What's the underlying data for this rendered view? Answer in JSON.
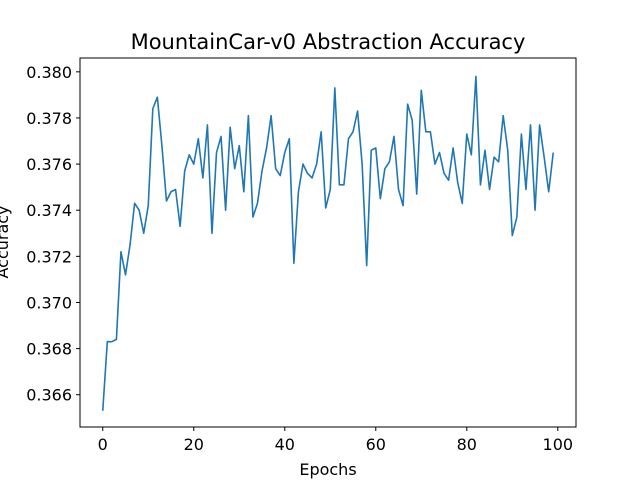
{
  "chart_data": {
    "type": "line",
    "title": "MountainCar-v0 Abstraction Accuracy",
    "xlabel": "Epochs",
    "ylabel": "Accuracy",
    "xlim": [
      -5,
      104
    ],
    "ylim": [
      0.3646,
      0.3806
    ],
    "xticks": [
      0,
      20,
      40,
      60,
      80,
      100
    ],
    "yticks": [
      0.366,
      0.368,
      0.37,
      0.372,
      0.374,
      0.376,
      0.378,
      0.38
    ],
    "ytick_labels": [
      "0.366",
      "0.368",
      "0.370",
      "0.372",
      "0.374",
      "0.376",
      "0.378",
      "0.380"
    ],
    "grid": false,
    "line_color": "#1f77b4",
    "series": [
      {
        "x": [
          0,
          1,
          2,
          3,
          4,
          5,
          6,
          7,
          8,
          9,
          10,
          11,
          12,
          13,
          14,
          15,
          16,
          17,
          18,
          19,
          20,
          21,
          22,
          23,
          24,
          25,
          26,
          27,
          28,
          29,
          30,
          31,
          32,
          33,
          34,
          35,
          36,
          37,
          38,
          39,
          40,
          41,
          42,
          43,
          44,
          45,
          46,
          47,
          48,
          49,
          50,
          51,
          52,
          53,
          54,
          55,
          56,
          57,
          58,
          59,
          60,
          61,
          62,
          63,
          64,
          65,
          66,
          67,
          68,
          69,
          70,
          71,
          72,
          73,
          74,
          75,
          76,
          77,
          78,
          79,
          80,
          81,
          82,
          83,
          84,
          85,
          86,
          87,
          88,
          89,
          90,
          91,
          92,
          93,
          94,
          95,
          96,
          97,
          98,
          99
        ],
        "values": [
          0.3653,
          0.3683,
          0.3683,
          0.3684,
          0.3722,
          0.3712,
          0.3725,
          0.3743,
          0.374,
          0.373,
          0.3742,
          0.3784,
          0.3789,
          0.3768,
          0.3744,
          0.3748,
          0.3749,
          0.3733,
          0.3757,
          0.3764,
          0.376,
          0.3771,
          0.3754,
          0.3777,
          0.373,
          0.3765,
          0.3772,
          0.374,
          0.3776,
          0.3758,
          0.3768,
          0.3748,
          0.3781,
          0.3737,
          0.3743,
          0.3757,
          0.3767,
          0.3781,
          0.3758,
          0.3755,
          0.3765,
          0.3771,
          0.3717,
          0.3748,
          0.376,
          0.3756,
          0.3754,
          0.376,
          0.3774,
          0.3741,
          0.3749,
          0.3793,
          0.3751,
          0.3751,
          0.3771,
          0.3774,
          0.3783,
          0.376,
          0.3716,
          0.3766,
          0.3767,
          0.3745,
          0.3758,
          0.3761,
          0.3772,
          0.3749,
          0.3742,
          0.3786,
          0.3779,
          0.3747,
          0.3792,
          0.3774,
          0.3774,
          0.376,
          0.3765,
          0.3756,
          0.3753,
          0.3767,
          0.3752,
          0.3743,
          0.3773,
          0.3764,
          0.3798,
          0.3751,
          0.3766,
          0.3749,
          0.3763,
          0.3761,
          0.3781,
          0.3766,
          0.3729,
          0.3737,
          0.3773,
          0.3749,
          0.3777,
          0.374,
          0.3777,
          0.3763,
          0.3748,
          0.3765
        ]
      }
    ]
  }
}
